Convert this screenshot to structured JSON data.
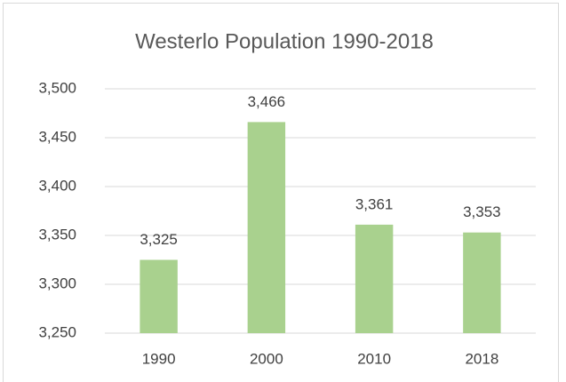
{
  "chart_data": {
    "type": "bar",
    "title": "Westerlo Population 1990-2018",
    "categories": [
      "1990",
      "2000",
      "2010",
      "2018"
    ],
    "values": [
      3325,
      3466,
      3361,
      3353
    ],
    "value_labels": [
      "3,325",
      "3,466",
      "3,361",
      "3,353"
    ],
    "color": "#a9d18e",
    "ylim": [
      3250,
      3500
    ],
    "yticks": [
      {
        "value": 3250,
        "label": "3,250"
      },
      {
        "value": 3300,
        "label": "3,300"
      },
      {
        "value": 3350,
        "label": "3,350"
      },
      {
        "value": 3400,
        "label": "3,400"
      },
      {
        "value": 3450,
        "label": "3,450"
      },
      {
        "value": 3500,
        "label": "3,500"
      }
    ],
    "grid": true
  }
}
